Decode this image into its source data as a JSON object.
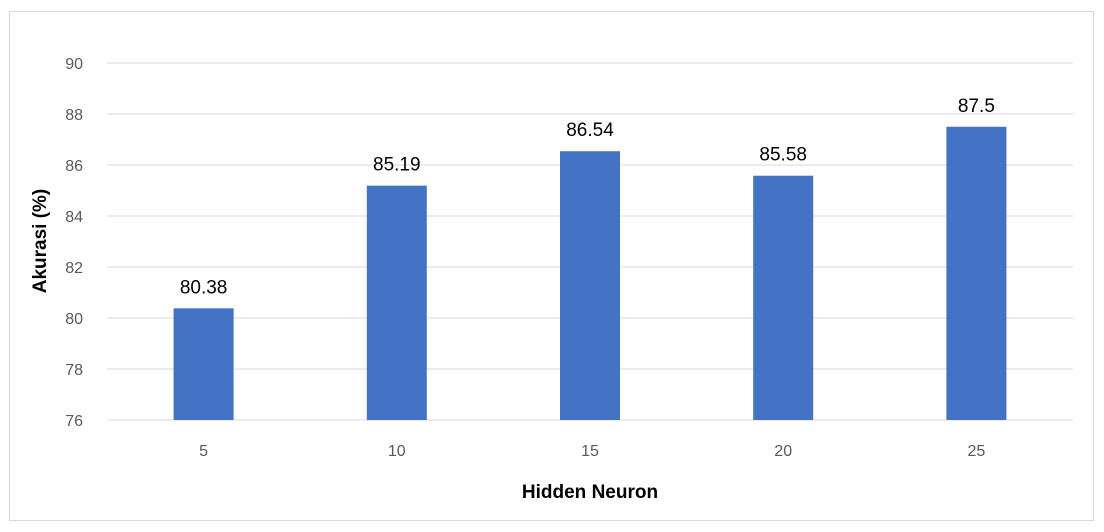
{
  "chart_data": {
    "type": "bar",
    "categories": [
      "5",
      "10",
      "15",
      "20",
      "25"
    ],
    "values": [
      80.38,
      85.19,
      86.54,
      85.58,
      87.5
    ],
    "data_labels": [
      "80.38",
      "85.19",
      "86.54",
      "85.58",
      "87.5"
    ],
    "title": "",
    "xlabel": "Hidden Neuron",
    "ylabel": "Akurasi (%)",
    "ylim": [
      76,
      90
    ],
    "yticks": [
      "76",
      "78",
      "80",
      "82",
      "84",
      "86",
      "88",
      "90"
    ],
    "ytick_values": [
      76,
      78,
      80,
      82,
      84,
      86,
      88,
      90
    ],
    "grid": true,
    "legend": "none",
    "bar_color": "#4472c4"
  }
}
